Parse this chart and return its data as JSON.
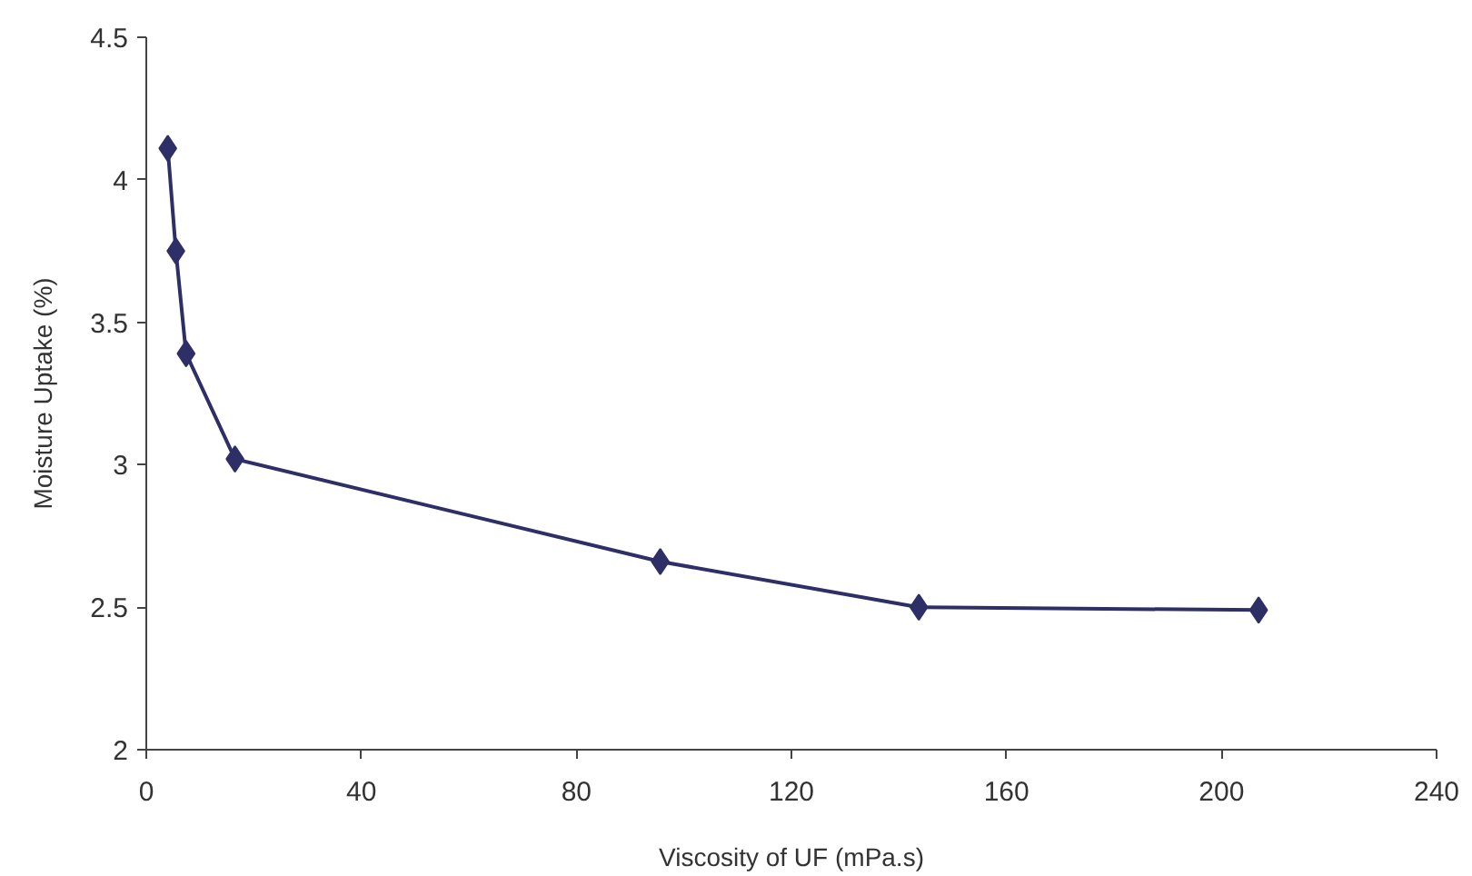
{
  "chart_data": {
    "type": "line",
    "xlabel": "Viscosity of UF (mPa.s)",
    "ylabel": "Moisture Uptake (%)",
    "x": [
      4,
      5.5,
      7.4,
      16.5,
      95.6,
      143.7,
      206.9
    ],
    "series": [
      {
        "color": "#2e2f66",
        "values": [
          4.11,
          3.75,
          3.39,
          3.02,
          2.66,
          2.5,
          2.49
        ]
      }
    ],
    "xlim": [
      0,
      240
    ],
    "xticks": [
      0,
      40,
      80,
      120,
      160,
      200,
      240
    ],
    "ylim": [
      2,
      4.5
    ],
    "yticks": [
      2,
      2.5,
      3,
      3.5,
      4,
      4.5
    ],
    "marker": "diamond",
    "line_style": "solid",
    "grid": false
  }
}
